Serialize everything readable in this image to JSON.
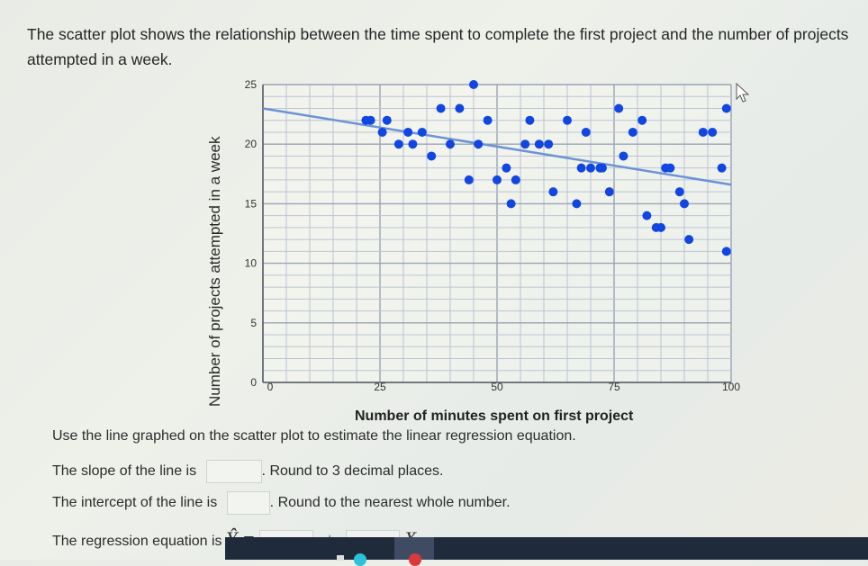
{
  "intro_text": "The scatter plot shows the relationship between the time spent to complete the first project and the number of projects attempted in a week.",
  "chart_data": {
    "type": "scatter",
    "title": "",
    "xlabel": "Number of minutes spent on first project",
    "ylabel": "Number of projects attempted in a week",
    "xlim": [
      0,
      100
    ],
    "ylim": [
      0,
      25
    ],
    "x_ticks": [
      0,
      25,
      50,
      75,
      100
    ],
    "y_ticks": [
      0,
      5,
      10,
      15,
      20,
      25
    ],
    "grid": true,
    "x_grid_step": 5,
    "y_grid_step": 1,
    "points": [
      [
        22,
        22
      ],
      [
        23,
        22
      ],
      [
        26.5,
        22
      ],
      [
        25.5,
        21
      ],
      [
        29,
        20
      ],
      [
        32,
        20
      ],
      [
        31,
        21
      ],
      [
        34,
        21
      ],
      [
        36,
        19
      ],
      [
        38,
        23
      ],
      [
        42,
        23
      ],
      [
        40,
        20
      ],
      [
        45,
        25
      ],
      [
        46,
        20
      ],
      [
        48,
        22
      ],
      [
        44,
        17
      ],
      [
        50,
        17
      ],
      [
        52,
        18
      ],
      [
        54,
        17
      ],
      [
        53,
        15
      ],
      [
        57,
        22
      ],
      [
        56,
        20
      ],
      [
        59,
        20
      ],
      [
        61,
        20
      ],
      [
        62,
        16
      ],
      [
        65,
        22
      ],
      [
        67,
        15
      ],
      [
        68,
        18
      ],
      [
        69,
        21
      ],
      [
        70,
        18
      ],
      [
        72,
        18
      ],
      [
        72.5,
        18
      ],
      [
        74,
        16
      ],
      [
        76,
        23
      ],
      [
        77,
        19
      ],
      [
        79,
        21
      ],
      [
        81,
        22
      ],
      [
        82,
        14
      ],
      [
        84,
        13
      ],
      [
        85,
        13
      ],
      [
        86,
        18
      ],
      [
        87,
        18
      ],
      [
        89,
        16
      ],
      [
        90,
        15
      ],
      [
        91,
        12
      ],
      [
        94,
        21
      ],
      [
        96,
        21
      ],
      [
        98,
        18
      ],
      [
        99,
        23
      ],
      [
        99,
        11
      ]
    ],
    "regression_line": {
      "x": [
        0,
        100
      ],
      "y": [
        23,
        16.6
      ]
    },
    "point_color": "#1246e0",
    "line_color": "#6b93d6"
  },
  "questions": {
    "instruction": "Use the line graphed on the scatter plot to estimate the linear regression equation.",
    "slope_prefix": "The slope of the line is",
    "slope_suffix": ". Round to 3 decimal places.",
    "slope_value": "",
    "intercept_prefix": "The intercept of the line is",
    "intercept_suffix": ". Round to the nearest whole number.",
    "intercept_value": "",
    "equation_prefix": "The regression equation is",
    "equation_lhs": "Ŷ =",
    "equation_plus": "+",
    "equation_x": "X.",
    "equation_intercept_value": "",
    "equation_slope_value": ""
  }
}
